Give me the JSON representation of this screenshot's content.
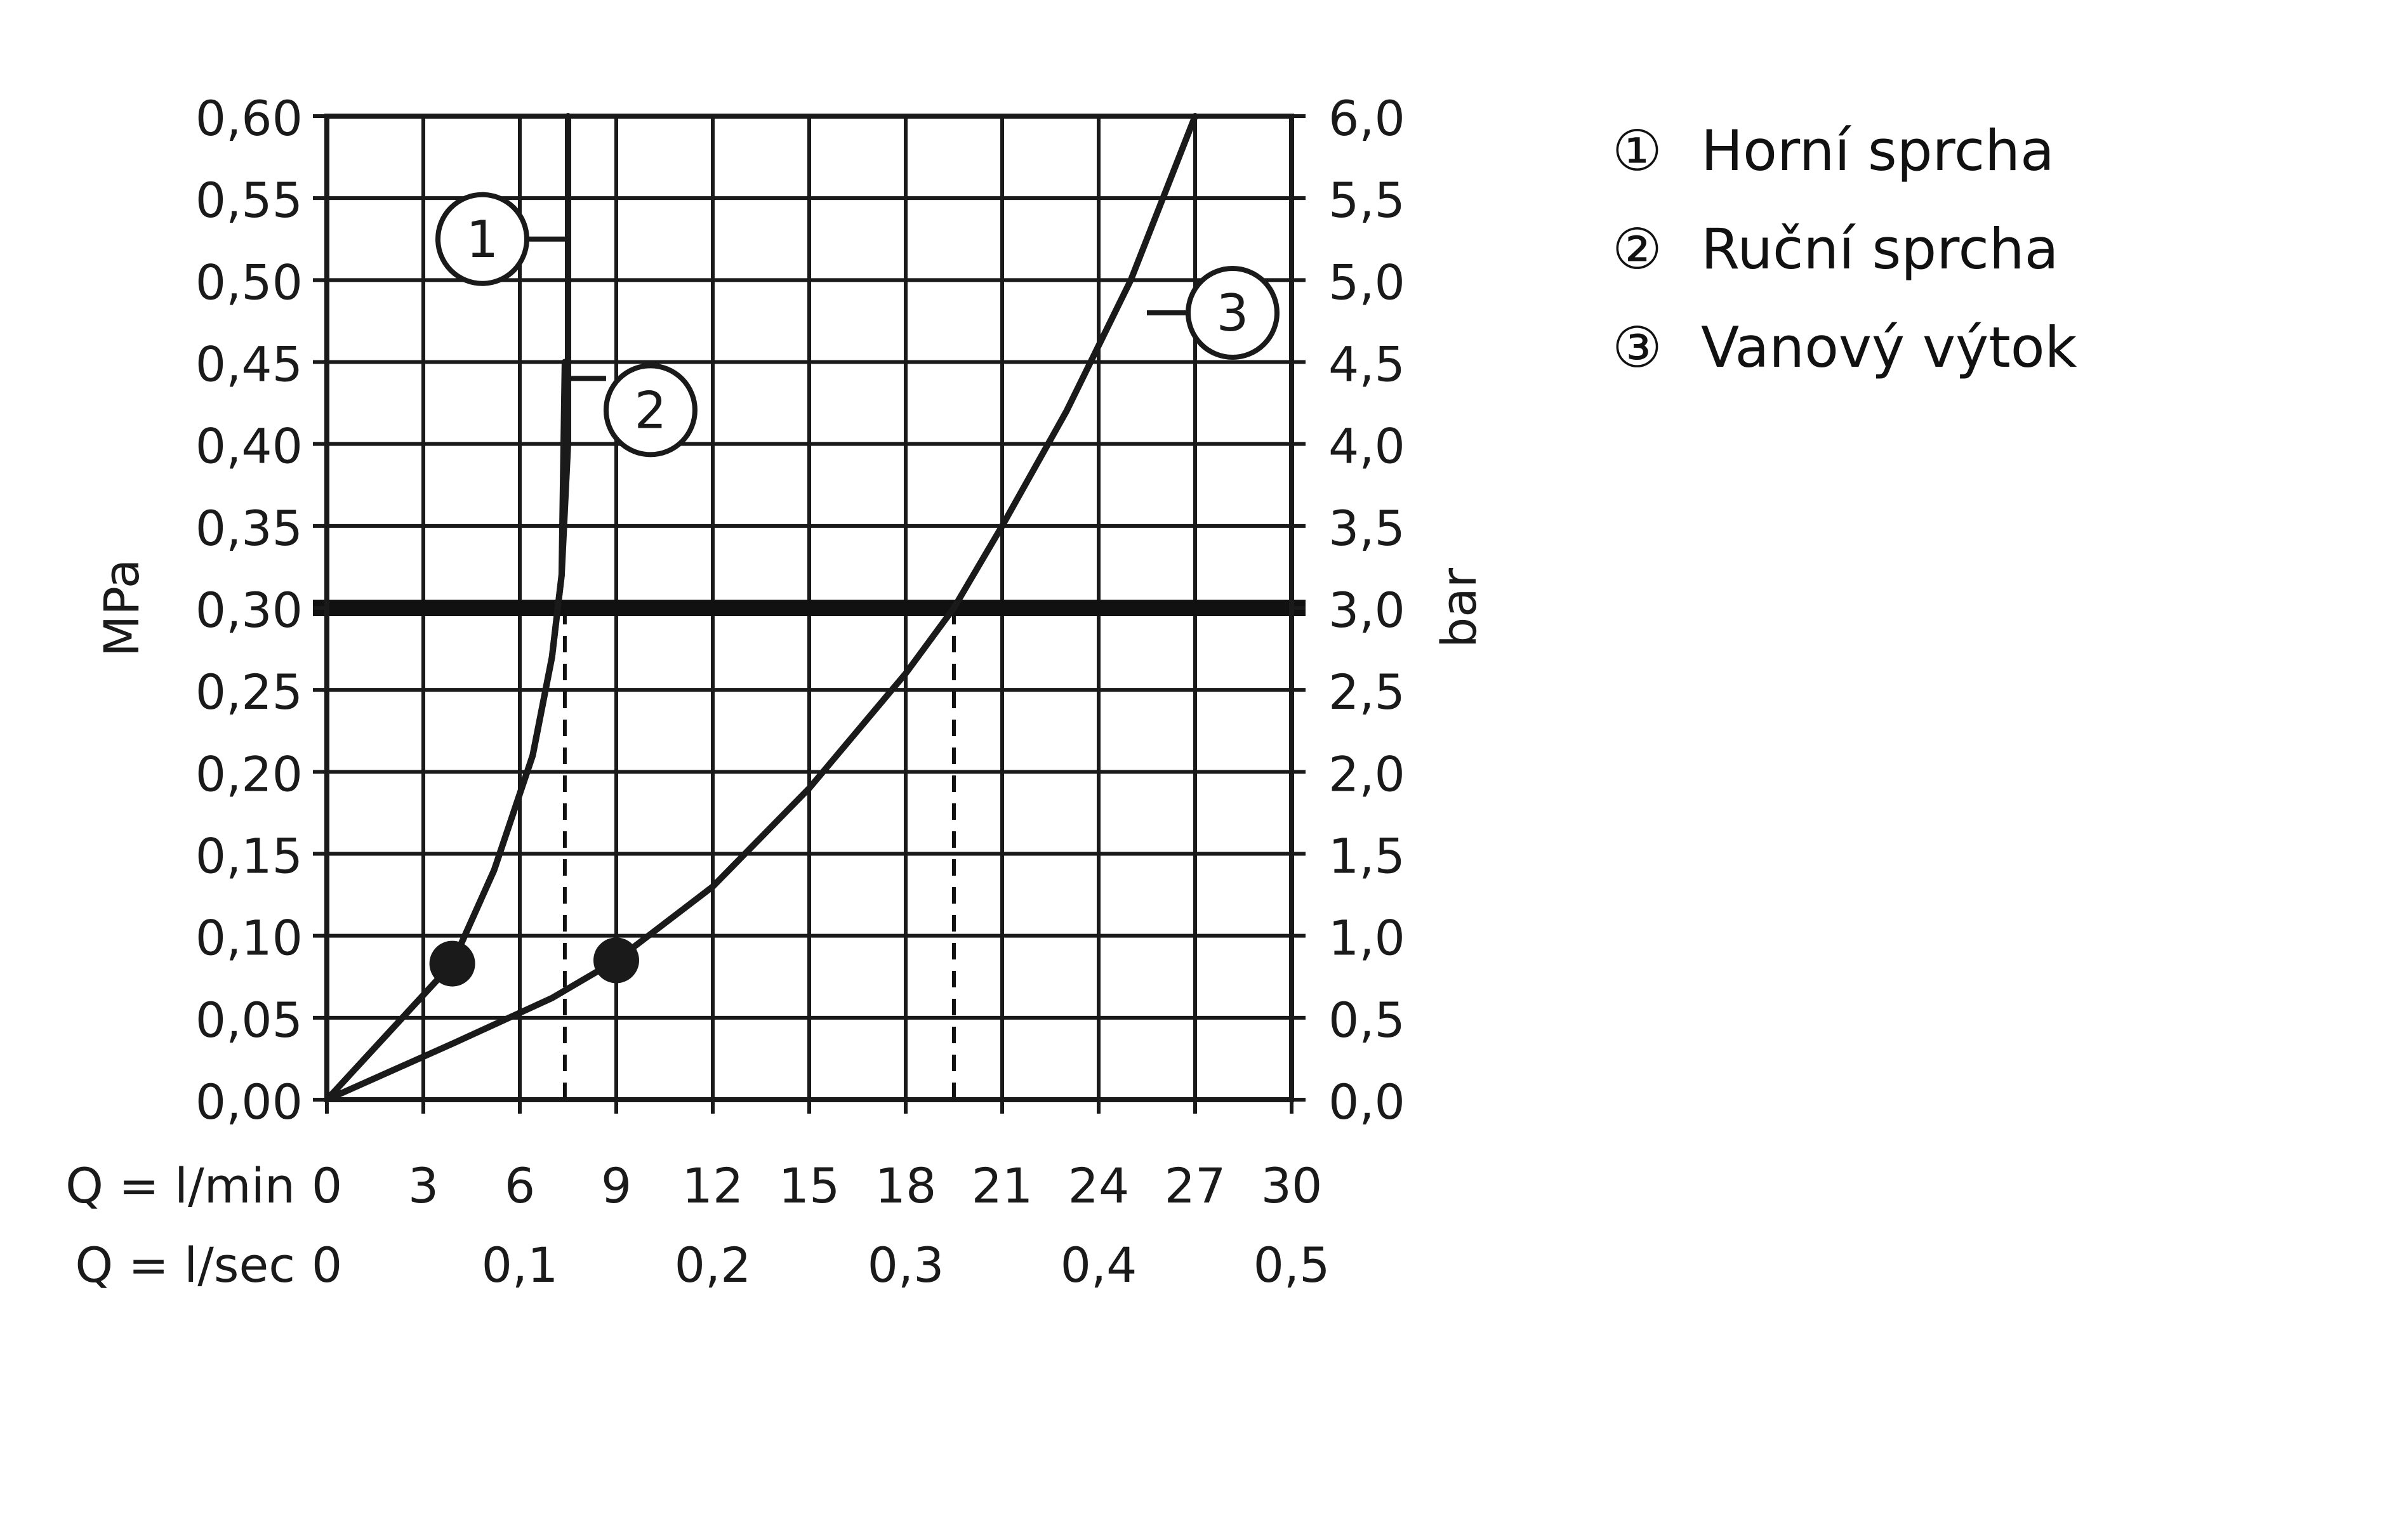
{
  "chart_data": {
    "type": "line",
    "y_left": {
      "label": "MPa",
      "ticks": [
        "0,00",
        "0,05",
        "0,10",
        "0,15",
        "0,20",
        "0,25",
        "0,30",
        "0,35",
        "0,40",
        "0,45",
        "0,50",
        "0,55",
        "0,60"
      ],
      "ylim": [
        0,
        0.6
      ]
    },
    "y_right": {
      "label": "bar",
      "ticks": [
        "0,0",
        "0,5",
        "1,0",
        "1,5",
        "2,0",
        "2,5",
        "3,0",
        "3,5",
        "4,0",
        "4,5",
        "5,0",
        "5,5",
        "6,0"
      ],
      "ylim": [
        0,
        6
      ]
    },
    "x_rows": [
      {
        "label": "Q = l/min",
        "ticks": [
          {
            "x": 0,
            "t": "0"
          },
          {
            "x": 3,
            "t": "3"
          },
          {
            "x": 6,
            "t": "6"
          },
          {
            "x": 9,
            "t": "9"
          },
          {
            "x": 12,
            "t": "12"
          },
          {
            "x": 15,
            "t": "15"
          },
          {
            "x": 18,
            "t": "18"
          },
          {
            "x": 21,
            "t": "21"
          },
          {
            "x": 24,
            "t": "24"
          },
          {
            "x": 27,
            "t": "27"
          },
          {
            "x": 30,
            "t": "30"
          }
        ]
      },
      {
        "label": "Q = l/sec",
        "ticks": [
          {
            "x": 0,
            "t": "0"
          },
          {
            "x": 6,
            "t": "0,1"
          },
          {
            "x": 12,
            "t": "0,2"
          },
          {
            "x": 18,
            "t": "0,3"
          },
          {
            "x": 24,
            "t": "0,4"
          },
          {
            "x": 30,
            "t": "0,5"
          }
        ]
      }
    ],
    "xlim": [
      0,
      30
    ],
    "grid": true,
    "reference_line": {
      "y": 0.3
    },
    "reference_drops": [
      {
        "x": 7.4,
        "y": 0.3
      },
      {
        "x": 19.5,
        "y": 0.3
      }
    ],
    "series": [
      {
        "marker": "1",
        "points": [
          [
            0,
            0
          ],
          [
            3.9,
            0.083
          ],
          [
            5.2,
            0.14
          ],
          [
            6.4,
            0.21
          ],
          [
            7.0,
            0.27
          ],
          [
            7.3,
            0.32
          ],
          [
            7.5,
            0.4
          ],
          [
            7.5,
            0.6
          ]
        ]
      },
      {
        "marker": "2",
        "points": [
          [
            0,
            0
          ],
          [
            3.9,
            0.083
          ],
          [
            5.2,
            0.14
          ],
          [
            6.4,
            0.21
          ],
          [
            7.0,
            0.27
          ],
          [
            7.3,
            0.32
          ],
          [
            7.4,
            0.45
          ]
        ]
      },
      {
        "marker": "3",
        "points": [
          [
            0,
            0
          ],
          [
            4,
            0.035
          ],
          [
            7,
            0.062
          ],
          [
            9,
            0.085
          ],
          [
            12,
            0.13
          ],
          [
            15,
            0.19
          ],
          [
            18,
            0.26
          ],
          [
            19.5,
            0.3
          ],
          [
            21,
            0.35
          ],
          [
            23,
            0.42
          ],
          [
            25,
            0.5
          ],
          [
            27,
            0.6
          ]
        ]
      }
    ],
    "dots": [
      {
        "x": 3.9,
        "y": 0.083
      },
      {
        "x": 9.0,
        "y": 0.085
      }
    ],
    "callouts": [
      {
        "t": "1",
        "x": 7.5,
        "y": 0.525
      },
      {
        "t": "2",
        "x": 7.4,
        "y": 0.44
      },
      {
        "t": "3",
        "x": 25.5,
        "y": 0.48
      }
    ]
  },
  "legend": [
    {
      "marker": "①",
      "label": "Horní sprcha"
    },
    {
      "marker": "②",
      "label": "Ruční sprcha"
    },
    {
      "marker": "③",
      "label": "Vanový výtok"
    }
  ]
}
